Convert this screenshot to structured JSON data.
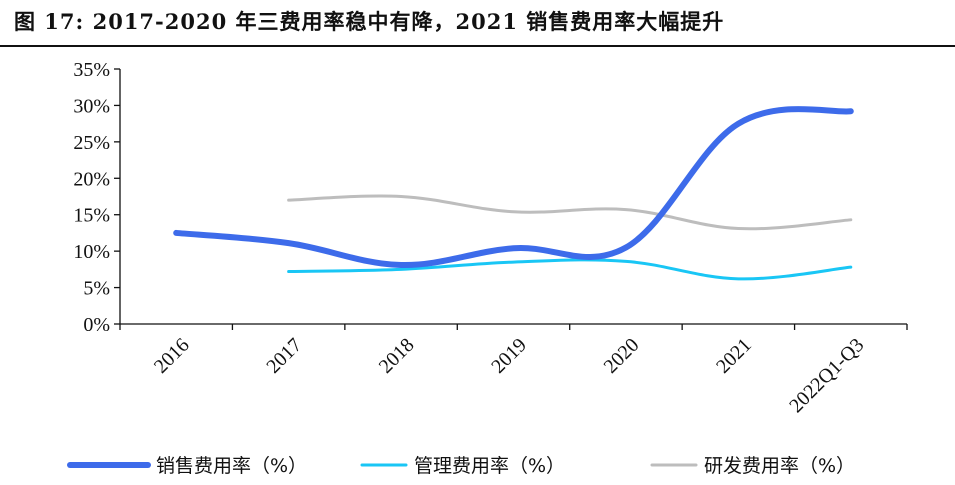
{
  "chart_data": {
    "type": "line",
    "title": "图 17: 2017-2020 年三费用率稳中有降，2021 销售费用率大幅提升",
    "categories": [
      "2016",
      "2017",
      "2018",
      "2019",
      "2020",
      "2021",
      "2022Q1-Q3"
    ],
    "ylim": [
      0,
      35
    ],
    "yticks": [
      0,
      5,
      10,
      15,
      20,
      25,
      30,
      35
    ],
    "yformat": "percent",
    "legend_position": "bottom",
    "grid": false,
    "series": [
      {
        "name": "销售费用率（%）",
        "color": "#3d6bea",
        "width": 6,
        "values": [
          12.5,
          11.1,
          8.1,
          10.4,
          10.5,
          27.5,
          29.2
        ]
      },
      {
        "name": "管理费用率（%）",
        "color": "#19c6f5",
        "width": 3,
        "values": [
          null,
          7.2,
          7.5,
          8.5,
          8.6,
          6.2,
          7.8
        ]
      },
      {
        "name": "研发费用率（%）",
        "color": "#bdbdbd",
        "width": 3,
        "values": [
          null,
          17.0,
          17.5,
          15.4,
          15.7,
          13.1,
          14.3
        ]
      }
    ]
  }
}
